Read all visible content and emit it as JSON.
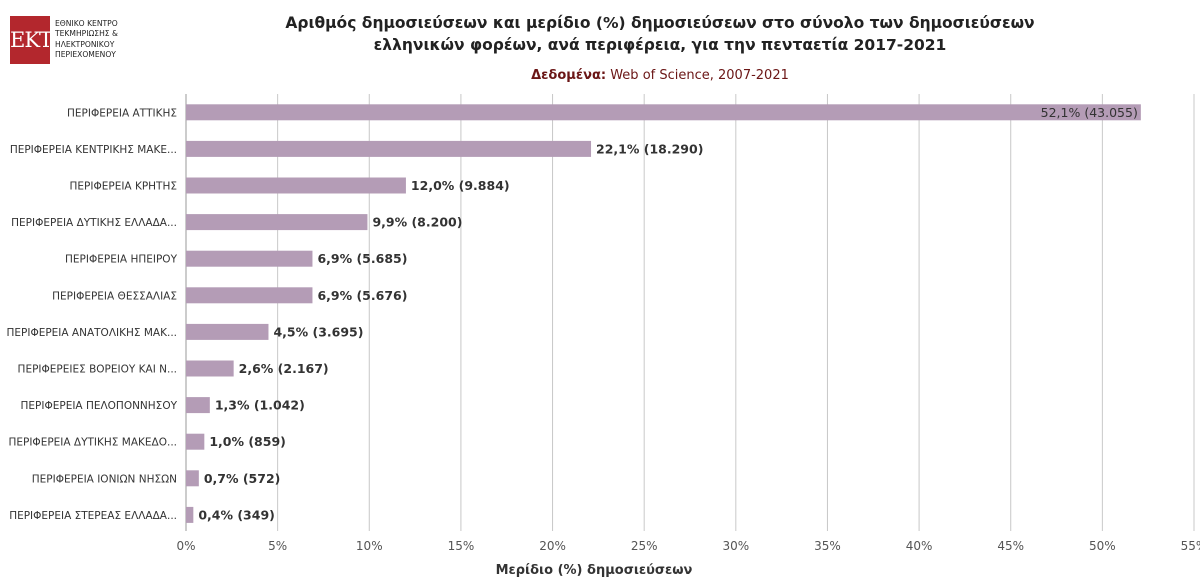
{
  "logo": {
    "mark": "EKT",
    "lines": [
      "ΕΘΝΙΚΟ ΚΕΝΤΡΟ",
      "ΤΕΚΜΗΡΙΩΣΗΣ &",
      "ΗΛΕΚΤΡΟΝΙΚΟΥ",
      "ΠΕΡΙΕΧΟΜΕΝΟΥ"
    ]
  },
  "title_lines": [
    "Αριθμός δημοσιεύσεων και μερίδιο (%) δημοσιεύσεων στο σύνολο των δημοσιεύσεων",
    "ελληνικών φορέων, ανά περιφέρεια, για την πενταετία 2017-2021"
  ],
  "subtitle": {
    "label": "Δεδομένα:",
    "value": "Web of Science, 2007-2021"
  },
  "colors": {
    "bar": "#b49cb6",
    "grid": "#c8c8c8",
    "label": "#333333"
  },
  "chart_data": {
    "type": "bar",
    "orientation": "horizontal",
    "categories": [
      "ΠΕΡΙΦΕΡΕΙΑ ΑΤΤΙΚΗΣ",
      "ΠΕΡΙΦΕΡΕΙΑ ΚΕΝΤΡΙΚΗΣ ΜΑΚΕ...",
      "ΠΕΡΙΦΕΡΕΙΑ ΚΡΗΤΗΣ",
      "ΠΕΡΙΦΕΡΕΙΑ ΔΥΤΙΚΗΣ ΕΛΛΑΔΑ...",
      "ΠΕΡΙΦΕΡΕΙΑ ΗΠΕΙΡΟΥ",
      "ΠΕΡΙΦΕΡΕΙΑ ΘΕΣΣΑΛΙΑΣ",
      "ΠΕΡΙΦΕΡΕΙΑ ΑΝΑΤΟΛΙΚΗΣ ΜΑΚ...",
      "ΠΕΡΙΦΕΡΕΙΕΣ ΒΟΡΕΙΟΥ ΚΑΙ Ν...",
      "ΠΕΡΙΦΕΡΕΙΑ ΠΕΛΟΠΟΝΝΗΣΟΥ",
      "ΠΕΡΙΦΕΡΕΙΑ ΔΥΤΙΚΗΣ ΜΑΚΕΔΟ...",
      "ΠΕΡΙΦΕΡΕΙΑ ΙΟΝΙΩΝ ΝΗΣΩΝ",
      "ΠΕΡΙΦΕΡΕΙΑ ΣΤΕΡΕΑΣ ΕΛΛΑΔΑ..."
    ],
    "values": [
      52.1,
      22.1,
      12.0,
      9.9,
      6.9,
      6.9,
      4.5,
      2.6,
      1.3,
      1.0,
      0.7,
      0.4
    ],
    "counts": [
      43055,
      18290,
      9884,
      8200,
      5685,
      5676,
      3695,
      2167,
      1042,
      859,
      572,
      349
    ],
    "data_labels": [
      "52,1% (43.055)",
      "22,1% (18.290)",
      "12,0% (9.884)",
      "9,9% (8.200)",
      "6,9% (5.685)",
      "6,9% (5.676)",
      "4,5% (3.695)",
      "2,6% (2.167)",
      "1,3% (1.042)",
      "1,0% (859)",
      "0,7% (572)",
      "0,4% (349)"
    ],
    "xlabel": "Μερίδιο (%) δημοσιεύσεων",
    "xlim": [
      0,
      55
    ],
    "ticks": [
      0,
      5,
      10,
      15,
      20,
      25,
      30,
      35,
      40,
      45,
      50,
      55
    ],
    "tick_labels": [
      "0%",
      "5%",
      "10%",
      "15%",
      "20%",
      "25%",
      "30%",
      "35%",
      "40%",
      "45%",
      "50%",
      "55%"
    ],
    "grid": true,
    "legend": "none"
  }
}
